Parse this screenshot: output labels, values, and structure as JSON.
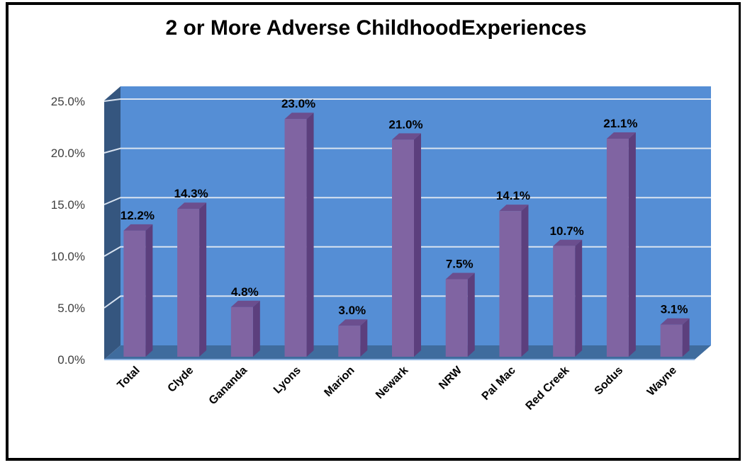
{
  "chart_data": {
    "type": "bar",
    "title": "2 or More Adverse ChildhoodExperiences",
    "categories": [
      "Total",
      "Clyde",
      "Gananda",
      "Lyons",
      "Marion",
      "Newark",
      "NRW",
      "Pal Mac",
      "Red Creek",
      "Sodus",
      "Wayne"
    ],
    "values": [
      12.2,
      14.3,
      4.8,
      23.0,
      3.0,
      21.0,
      7.5,
      14.1,
      10.7,
      21.1,
      3.1
    ],
    "data_labels": [
      "12.2%",
      "14.3%",
      "4.8%",
      "23.0%",
      "3.0%",
      "21.0%",
      "7.5%",
      "14.1%",
      "10.7%",
      "21.1%",
      "3.1%"
    ],
    "yticks": [
      "0.0%",
      "5.0%",
      "10.0%",
      "15.0%",
      "20.0%",
      "25.0%"
    ],
    "ytick_values": [
      0,
      5,
      10,
      15,
      20,
      25
    ],
    "ylim": [
      0,
      25
    ],
    "xlabel": "",
    "ylabel": "",
    "grid": true,
    "legend": "none",
    "colors": {
      "plot_wall": "#558ED5",
      "side_wall": "#35567f",
      "floor": "#3f6c9e",
      "bar_front": "#8064A2",
      "bar_side": "#5c3f7d",
      "bar_top": "#6b4e8e",
      "gridline": "#d9e3f0"
    }
  }
}
